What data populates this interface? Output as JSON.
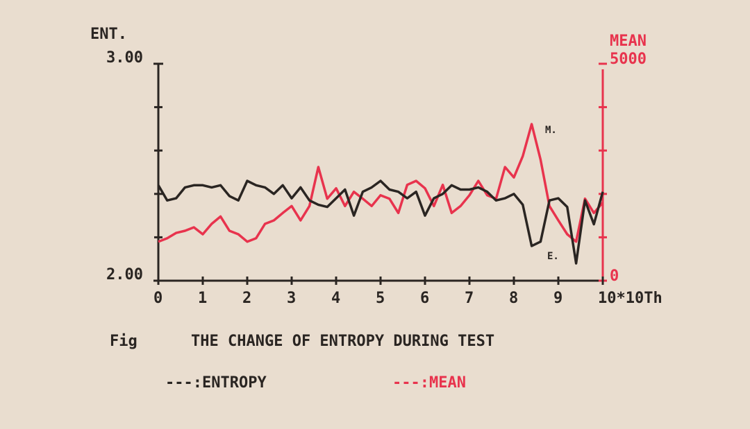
{
  "chart_data": {
    "type": "line",
    "title": "THE CHANGE OF ENTROPY DURING TEST",
    "figure_label": "Fig",
    "y_label": "ENT.",
    "y2_label": "MEAN",
    "annotations": [
      "M.",
      "E."
    ],
    "legend": "bottom",
    "x": [
      0,
      0.2,
      0.4,
      0.6,
      0.8,
      1,
      1.2,
      1.4,
      1.6,
      1.8,
      2,
      2.2,
      2.4,
      2.6,
      2.8,
      3,
      3.2,
      3.4,
      3.6,
      3.8,
      4,
      4.2,
      4.4,
      4.6,
      4.8,
      5,
      5.2,
      5.4,
      5.6,
      5.8,
      6,
      6.2,
      6.4,
      6.6,
      6.8,
      7,
      7.2,
      7.4,
      7.6,
      7.8,
      8,
      8.2,
      8.4,
      8.6,
      8.8,
      9,
      9.2,
      9.4,
      9.6,
      9.8,
      10
    ],
    "series": [
      {
        "name": "---:ENTROPY",
        "color": "#2a2522",
        "values": [
          2.44,
          2.37,
          2.38,
          2.43,
          2.44,
          2.44,
          2.43,
          2.44,
          2.39,
          2.37,
          2.46,
          2.44,
          2.43,
          2.4,
          2.44,
          2.38,
          2.43,
          2.37,
          2.35,
          2.34,
          2.38,
          2.42,
          2.3,
          2.41,
          2.43,
          2.46,
          2.42,
          2.41,
          2.38,
          2.41,
          2.3,
          2.38,
          2.4,
          2.44,
          2.42,
          2.42,
          2.43,
          2.41,
          2.37,
          2.38,
          2.4,
          2.35,
          2.16,
          2.18,
          2.37,
          2.38,
          2.34,
          2.08,
          2.37,
          2.26,
          2.41
        ]
      },
      {
        "name": "---:MEAN",
        "color": "#e8334d",
        "axis": "y2",
        "values": [
          900,
          980,
          1100,
          1150,
          1230,
          1070,
          1310,
          1480,
          1150,
          1070,
          900,
          980,
          1310,
          1390,
          1560,
          1720,
          1390,
          1720,
          2620,
          1890,
          2130,
          1720,
          2050,
          1890,
          1720,
          1970,
          1890,
          1560,
          2210,
          2300,
          2130,
          1720,
          2210,
          1560,
          1720,
          1970,
          2300,
          1970,
          1890,
          2620,
          2380,
          2870,
          3610,
          2790,
          1720,
          1390,
          1070,
          900,
          1890,
          1560,
          1800
        ]
      }
    ],
    "xlim": [
      0,
      10
    ],
    "xticks": [
      0,
      1,
      2,
      3,
      4,
      5,
      6,
      7,
      8,
      9,
      {
        "value": 10,
        "label": "10*10Th"
      }
    ],
    "ylim": [
      2,
      3
    ],
    "yticks": [
      {
        "value": 2,
        "label": "2.00"
      },
      {
        "value": 3,
        "label": "3.00"
      }
    ],
    "yminorticks": [
      2.2,
      2.4,
      2.6,
      2.8
    ],
    "y2lim": [
      0,
      5000
    ],
    "y2ticks": [
      0,
      5000
    ],
    "y2minorticks": [
      1000,
      2000,
      3000,
      4000
    ]
  }
}
